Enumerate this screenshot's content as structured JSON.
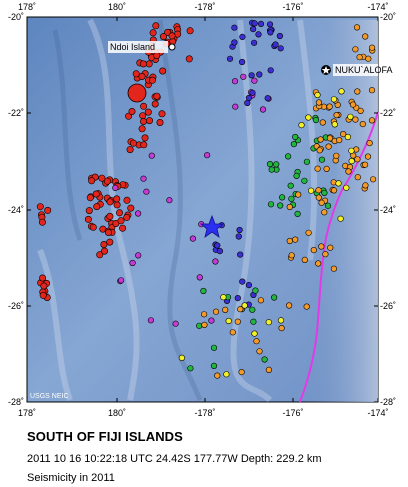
{
  "map": {
    "lon_ticks": [
      {
        "lon": -178,
        "label": "178˚"
      },
      {
        "lon": -180,
        "label": "180˚"
      },
      {
        "lon": 178,
        "label": "-178˚"
      },
      {
        "lon": 176,
        "label": "-176˚"
      },
      {
        "lon": 174,
        "label": "-174˚"
      }
    ],
    "lat_ticks": [
      {
        "lat": -20,
        "label": "-20˚"
      },
      {
        "lat": -22,
        "label": "-22˚"
      },
      {
        "lat": -24,
        "label": "-24˚"
      },
      {
        "lat": -26,
        "label": "-26˚"
      },
      {
        "lat": -28,
        "label": "-28˚"
      }
    ],
    "places": [
      {
        "name": "Ndoi Island",
        "marker": "dot"
      },
      {
        "name": "NUKU`ALOFA",
        "marker": "star"
      }
    ],
    "credit": "USGS NEIC",
    "mainshock": {
      "lat": -24.42,
      "lon": 177.77,
      "marker": "blue-star"
    },
    "colors": {
      "ocean": "#6f93c6",
      "plate_boundary": "#e23ae6",
      "depth_shallow": "#f39a2a",
      "depth_mid": "#22b540",
      "depth_deep": "#3c2fd1",
      "depth_deeper": "#c63bd6",
      "depth_deepest": "#e2261c",
      "depth_yellow": "#f4f02a"
    }
  },
  "caption": {
    "title": "SOUTH OF FIJI ISLANDS",
    "event_line": "2011 10 16 10:22:18 UTC 24.42S 177.77W Depth: 229.2 km",
    "subtitle": "Seismicity in 2011"
  }
}
